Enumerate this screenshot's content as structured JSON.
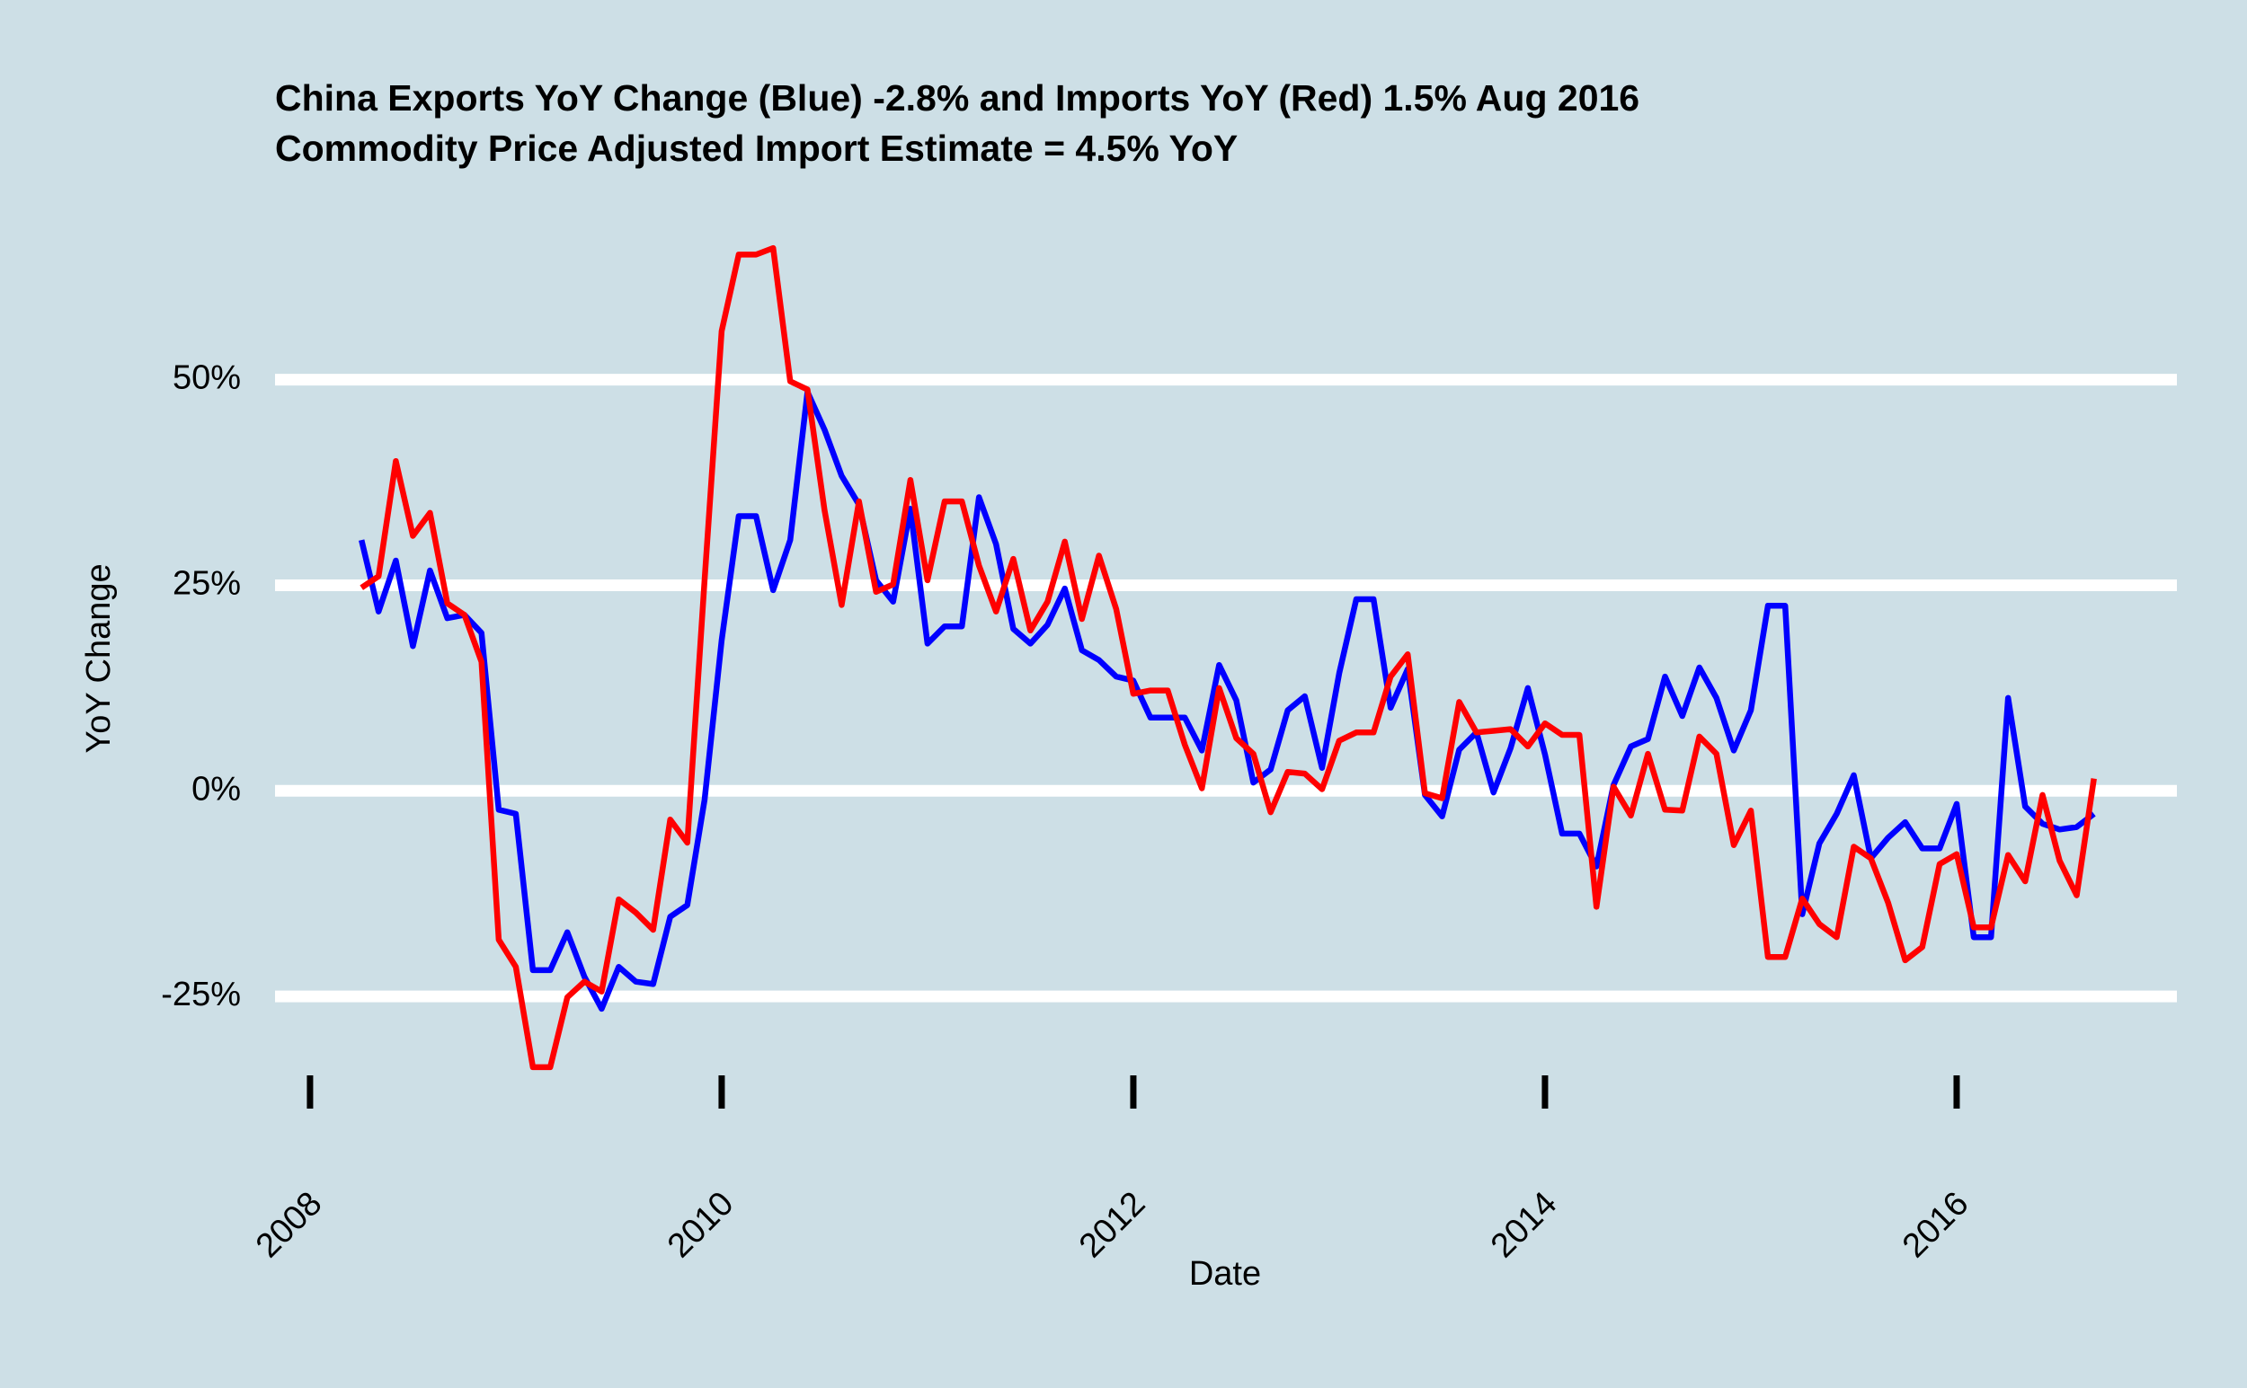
{
  "chart_data": {
    "type": "line",
    "title": "China Exports YoY Change (Blue) -2.8% and Imports YoY (Red) 1.5% Aug 2016",
    "subtitle": "Commodity Price Adjusted Import Estimate = 4.5% YoY",
    "x_label": "Date",
    "y_label": "YoY Change",
    "x": [
      2008.25,
      2008.333,
      2008.417,
      2008.5,
      2008.583,
      2008.667,
      2008.75,
      2008.833,
      2008.917,
      2009.0,
      2009.083,
      2009.167,
      2009.25,
      2009.333,
      2009.417,
      2009.5,
      2009.583,
      2009.667,
      2009.75,
      2009.833,
      2009.917,
      2010.0,
      2010.083,
      2010.167,
      2010.25,
      2010.333,
      2010.417,
      2010.5,
      2010.583,
      2010.667,
      2010.75,
      2010.833,
      2010.917,
      2011.0,
      2011.083,
      2011.167,
      2011.25,
      2011.333,
      2011.417,
      2011.5,
      2011.583,
      2011.667,
      2011.75,
      2011.833,
      2011.917,
      2012.0,
      2012.083,
      2012.167,
      2012.25,
      2012.333,
      2012.417,
      2012.5,
      2012.583,
      2012.667,
      2012.75,
      2012.833,
      2012.917,
      2013.0,
      2013.083,
      2013.167,
      2013.25,
      2013.333,
      2013.417,
      2013.5,
      2013.583,
      2013.667,
      2013.75,
      2013.833,
      2013.917,
      2014.0,
      2014.083,
      2014.167,
      2014.25,
      2014.333,
      2014.417,
      2014.5,
      2014.583,
      2014.667,
      2014.75,
      2014.833,
      2014.917,
      2015.0,
      2015.083,
      2015.167,
      2015.25,
      2015.333,
      2015.417,
      2015.5,
      2015.583,
      2015.667,
      2015.75,
      2015.833,
      2015.917,
      2016.0,
      2016.083,
      2016.167,
      2016.25,
      2016.333,
      2016.417,
      2016.5,
      2016.583,
      2016.667
    ],
    "series": [
      {
        "name": "Exports",
        "color": "#0000ff",
        "values": [
          30.5,
          21.8,
          28,
          17.6,
          26.8,
          21,
          21.4,
          19.2,
          -2.3,
          -2.8,
          -21.8,
          -21.8,
          -17.2,
          -22.6,
          -26.5,
          -21.4,
          -23.2,
          -23.5,
          -15.3,
          -13.9,
          -1.1,
          18.3,
          33.4,
          33.4,
          24.4,
          30.5,
          48.5,
          43.9,
          38.3,
          34.8,
          25.6,
          23,
          34.3,
          17.9,
          20,
          20,
          35.7,
          30,
          19.7,
          17.9,
          20.2,
          24.6,
          17.1,
          15.9,
          13.9,
          13.4,
          8.9,
          8.9,
          8.9,
          4.9,
          15.3,
          11,
          1,
          2.6,
          9.8,
          11.5,
          2.8,
          14.3,
          23.3,
          23.3,
          10.1,
          14.8,
          -0.5,
          -3.1,
          5,
          7.1,
          -0.2,
          5.2,
          12.5,
          4.4,
          -5.2,
          -5.2,
          -9.2,
          0.7,
          5.4,
          6.3,
          13.9,
          9.1,
          15,
          11.3,
          4.9,
          9.8,
          22.5,
          22.5,
          -15,
          -6.4,
          -2.8,
          1.9,
          -8.2,
          -5.7,
          -3.8,
          -7,
          -7,
          -1.6,
          -17.8,
          -17.8,
          11.3,
          -1.9,
          -4,
          -4.7,
          -4.4,
          -2.8
        ]
      },
      {
        "name": "Imports",
        "color": "#ff0000",
        "values": [
          24.7,
          26.1,
          40.1,
          31,
          33.8,
          22.8,
          21.4,
          15.7,
          -18.1,
          -21.4,
          -33.6,
          -33.6,
          -25.1,
          -23.2,
          -24.4,
          -13.2,
          -14.8,
          -16.9,
          -3.5,
          -6.3,
          25.6,
          55.9,
          65.2,
          65.2,
          66,
          49.8,
          48.8,
          34.1,
          22.6,
          35.2,
          24.2,
          25.1,
          37.8,
          25.6,
          35.2,
          35.2,
          27.4,
          21.8,
          28.2,
          19.5,
          23,
          30.3,
          20.9,
          28.6,
          22.1,
          11.8,
          12.2,
          12.2,
          5.6,
          0.3,
          12.5,
          6.4,
          4.5,
          -2.6,
          2.3,
          2.1,
          0.2,
          6.1,
          7.1,
          7.1,
          13.9,
          16.6,
          -0.3,
          -0.9,
          10.8,
          7.1,
          7.3,
          7.5,
          5.4,
          8.2,
          6.8,
          6.8,
          -14.1,
          0.5,
          -3,
          4.5,
          -2.3,
          -2.4,
          6.6,
          4.5,
          -6.6,
          -2.4,
          -20.2,
          -20.2,
          -13.1,
          -16.2,
          -17.8,
          -6.8,
          -8.2,
          -13.6,
          -20.6,
          -19,
          -8.9,
          -7.7,
          -16.6,
          -16.6,
          -7.8,
          -11,
          -0.5,
          -8.5,
          -12.7,
          1.5
        ]
      }
    ],
    "xlim": [
      2007.83,
      2017.07
    ],
    "xticks": [
      2008,
      2010,
      2012,
      2014,
      2016
    ],
    "ylim": [
      -37,
      70
    ],
    "yticks": [
      {
        "value": -25,
        "label": "-25%"
      },
      {
        "value": 0,
        "label": "0%"
      },
      {
        "value": 25,
        "label": "25%"
      },
      {
        "value": 50,
        "label": "50%"
      }
    ],
    "grid": true
  }
}
